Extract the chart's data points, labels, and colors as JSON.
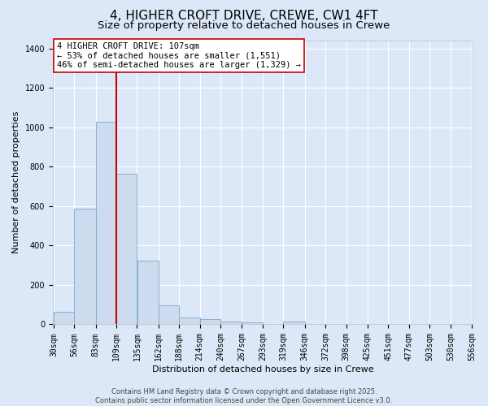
{
  "title_line1": "4, HIGHER CROFT DRIVE, CREWE, CW1 4FT",
  "title_line2": "Size of property relative to detached houses in Crewe",
  "xlabel": "Distribution of detached houses by size in Crewe",
  "ylabel": "Number of detached properties",
  "bar_color": "#ccdcee",
  "bar_edge_color": "#7aaacf",
  "background_color": "#dce8f8",
  "grid_color": "#ffffff",
  "vline_color": "#cc0000",
  "annotation_text": "4 HIGHER CROFT DRIVE: 107sqm\n← 53% of detached houses are smaller (1,551)\n46% of semi-detached houses are larger (1,329) →",
  "annotation_box_color": "#ffffff",
  "annotation_edge_color": "#cc0000",
  "bins": [
    30,
    56,
    83,
    109,
    135,
    162,
    188,
    214,
    240,
    267,
    293,
    319,
    346,
    372,
    398,
    425,
    451,
    477,
    503,
    530,
    556
  ],
  "counts": [
    65,
    585,
    1030,
    765,
    325,
    95,
    35,
    25,
    15,
    10,
    0,
    15,
    0,
    0,
    0,
    0,
    0,
    0,
    0,
    0
  ],
  "ylim": [
    0,
    1440
  ],
  "yticks": [
    0,
    200,
    400,
    600,
    800,
    1000,
    1200,
    1400
  ],
  "footer_text": "Contains HM Land Registry data © Crown copyright and database right 2025.\nContains public sector information licensed under the Open Government Licence v3.0.",
  "title_fontsize": 11,
  "subtitle_fontsize": 9.5,
  "axis_label_fontsize": 8,
  "tick_fontsize": 7,
  "annotation_fontsize": 7.5,
  "footer_fontsize": 6
}
